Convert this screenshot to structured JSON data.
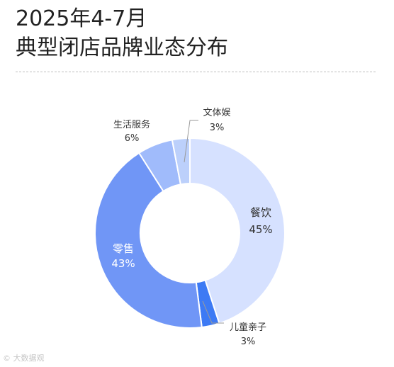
{
  "title_line1": "2025年4-7月",
  "title_line2": "典型闭店品牌业态分布",
  "watermark": "© 大数据观",
  "chart_data": {
    "type": "pie",
    "variant": "donut",
    "categories": [
      "餐饮",
      "儿童亲子",
      "零售",
      "生活服务",
      "文体娱"
    ],
    "values": [
      45,
      3,
      43,
      6,
      3
    ],
    "value_labels": [
      "45%",
      "3%",
      "43%",
      "6%",
      "3%"
    ],
    "colors": [
      "#d6e1ff",
      "#3d7af4",
      "#7096f6",
      "#a0bbfb",
      "#bcd0fb"
    ],
    "label_colors": [
      "#333333",
      "#333333",
      "#ffffff",
      "#333333",
      "#333333"
    ],
    "legend": "none"
  }
}
